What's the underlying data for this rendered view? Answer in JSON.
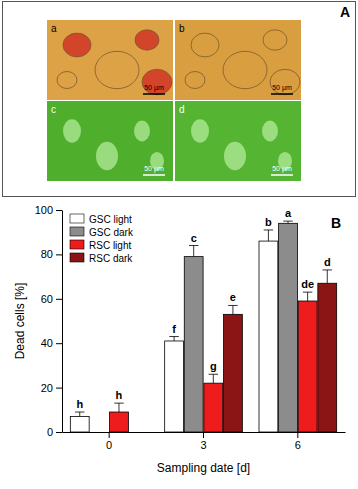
{
  "micrographs": {
    "label": "A",
    "images": [
      {
        "label": "a",
        "scale_bar": "50 µm"
      },
      {
        "label": "b",
        "scale_bar": "50 µm"
      },
      {
        "label": "c",
        "scale_bar": "50 µm"
      },
      {
        "label": "d",
        "scale_bar": "50 µm"
      }
    ]
  },
  "chart_data": {
    "type": "bar",
    "annotations": [
      {
        "text": "B"
      }
    ],
    "x_label": "Sampling date [d]",
    "y_label": "Dead cells [%]",
    "categories": [
      "0",
      "3",
      "6"
    ],
    "ylim": [
      0,
      100
    ],
    "yticks": [
      0,
      20,
      40,
      60,
      80,
      100
    ],
    "legend": "top-left",
    "series": [
      {
        "name": "GSC light",
        "color": "#ffffff",
        "values": [
          7,
          41,
          86
        ],
        "errors": [
          2,
          2,
          5
        ],
        "letters": [
          "h",
          "f",
          "b"
        ]
      },
      {
        "name": "GSC dark",
        "color": "#8c8c8c",
        "values": [
          null,
          79,
          94
        ],
        "errors": [
          null,
          5,
          1
        ],
        "letters": [
          null,
          "c",
          "a"
        ]
      },
      {
        "name": "RSC light",
        "color": "#ee1c1c",
        "values": [
          9,
          22,
          59
        ],
        "errors": [
          4,
          4,
          4
        ],
        "letters": [
          "h",
          "g",
          "de"
        ]
      },
      {
        "name": "RSC dark",
        "color": "#8b1414",
        "values": [
          null,
          53,
          67
        ],
        "errors": [
          null,
          4,
          6
        ],
        "letters": [
          null,
          "e",
          "d"
        ]
      }
    ]
  }
}
